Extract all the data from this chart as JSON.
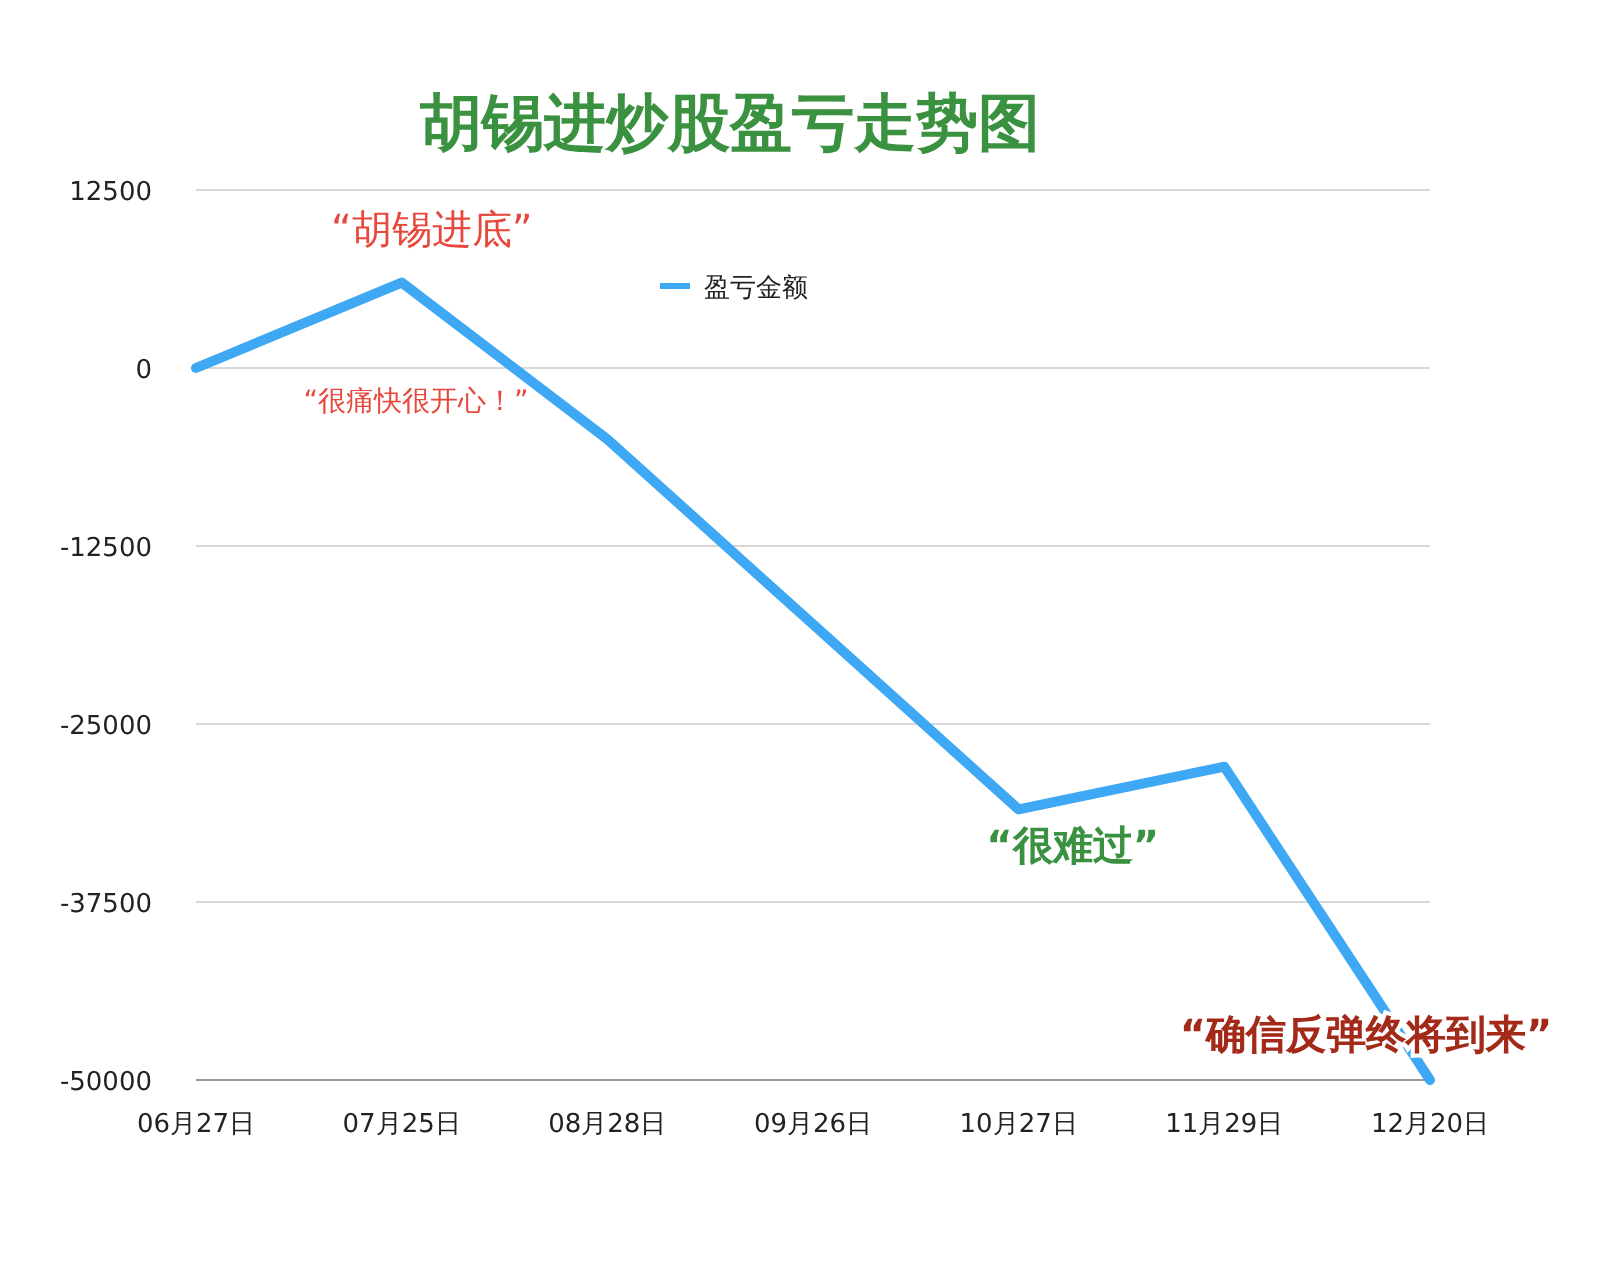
{
  "chart_data": {
    "type": "line",
    "title": "胡锡进炒股盈亏走势图",
    "categories": [
      "06月27日",
      "07月25日",
      "08月28日",
      "09月26日",
      "10月27日",
      "11月29日",
      "12月20日"
    ],
    "series": [
      {
        "name": "盈亏金额",
        "color": "#3ea8f4",
        "values": [
          0,
          6000,
          -5000,
          -18000,
          -31000,
          -28000,
          -50000
        ]
      }
    ],
    "ylim": [
      -50000,
      12500
    ],
    "yticks": [
      -50000,
      -37500,
      -25000,
      -12500,
      0,
      12500
    ],
    "grid": "y",
    "legend": "top",
    "annotations": [
      {
        "text": "“胡锡进底”",
        "x": "07月25日",
        "y": 6000
      },
      "“很痛快很开心！”",
      {
        "text": "“很难过”",
        "x": "10月27日",
        "y": -31000
      },
      {
        "text": "“确信反弹终将到来”",
        "x": "12月20日",
        "y": -50000
      }
    ]
  }
}
